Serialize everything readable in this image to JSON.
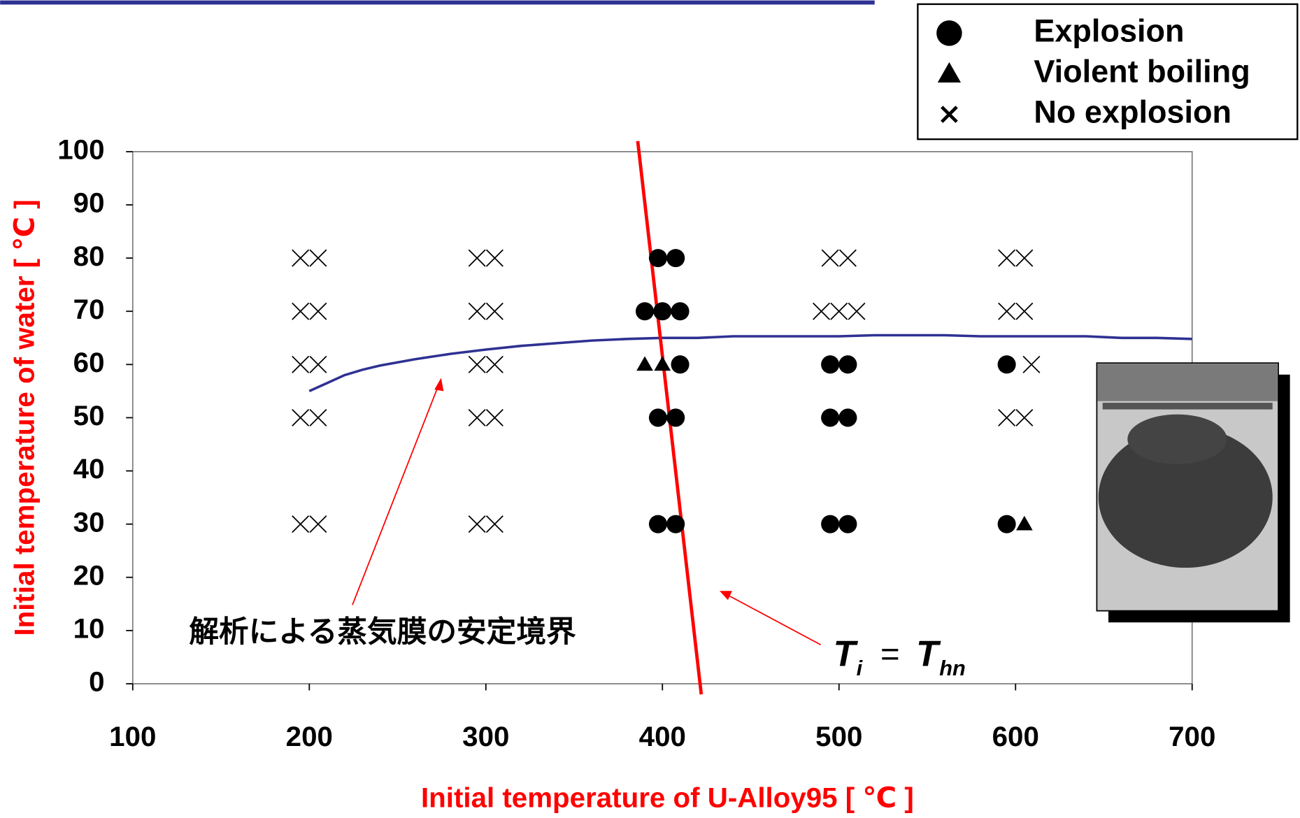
{
  "chart_data": {
    "type": "scatter",
    "xlabel": "Initial temperature of U-Alloy95 [ ℃ ]",
    "ylabel": "Initial temperature of water [ ℃ ]",
    "xlim": [
      100,
      700
    ],
    "xticks": [
      100,
      200,
      300,
      400,
      500,
      600,
      700
    ],
    "ylim": [
      0,
      100
    ],
    "yticks": [
      0,
      10,
      20,
      30,
      40,
      50,
      60,
      70,
      80,
      90,
      100
    ],
    "legend": "top-right",
    "series": [
      {
        "name": "Explosion",
        "marker": "circle",
        "color": "#000000",
        "x": [
          397.5,
          407.5,
          390,
          400,
          410,
          410,
          397.5,
          407.5,
          397.5,
          407.5,
          495,
          505,
          495,
          505,
          495,
          505,
          595,
          595
        ],
        "values": [
          80,
          80,
          70,
          70,
          70,
          60,
          50,
          50,
          30,
          30,
          60,
          60,
          50,
          50,
          30,
          30,
          60,
          30
        ]
      },
      {
        "name": "Violent boiling",
        "marker": "triangle",
        "color": "#000000",
        "x": [
          390,
          400,
          605
        ],
        "values": [
          60,
          60,
          30
        ]
      },
      {
        "name": "No explosion",
        "marker": "cross",
        "color": "#000000",
        "x": [
          195,
          205,
          195,
          205,
          195,
          205,
          195,
          205,
          195,
          205,
          295,
          305,
          295,
          305,
          295,
          305,
          295,
          305,
          295,
          305,
          495,
          505,
          490,
          500,
          510,
          595,
          605,
          595,
          605,
          609,
          595,
          605
        ],
        "values": [
          80,
          80,
          70,
          70,
          60,
          60,
          50,
          50,
          30,
          30,
          80,
          80,
          70,
          70,
          60,
          60,
          50,
          50,
          30,
          30,
          80,
          80,
          70,
          70,
          70,
          80,
          80,
          70,
          70,
          60,
          50,
          50
        ]
      }
    ],
    "lines": [
      {
        "color": "#2e3192",
        "x": [
          200,
          210,
          220,
          230,
          240,
          260,
          280,
          300,
          320,
          340,
          360,
          380,
          400,
          420,
          440,
          460,
          480,
          500,
          520,
          540,
          560,
          580,
          600,
          620,
          640,
          660,
          680,
          700
        ],
        "values": [
          55,
          56.5,
          58,
          59,
          59.8,
          61,
          62,
          62.8,
          63.5,
          64,
          64.5,
          64.8,
          65,
          65,
          65.3,
          65.3,
          65.3,
          65.3,
          65.5,
          65.5,
          65.5,
          65.3,
          65.3,
          65.3,
          65.3,
          65,
          65,
          64.8
        ]
      },
      {
        "color": "#ff0000",
        "x": [
          386,
          422
        ],
        "values": [
          102,
          -2
        ]
      }
    ],
    "annotations": {
      "boundary": "解析による蒸気膜の安定境界",
      "formula": [
        "T",
        "i",
        "=",
        "T",
        "hn"
      ]
    }
  }
}
